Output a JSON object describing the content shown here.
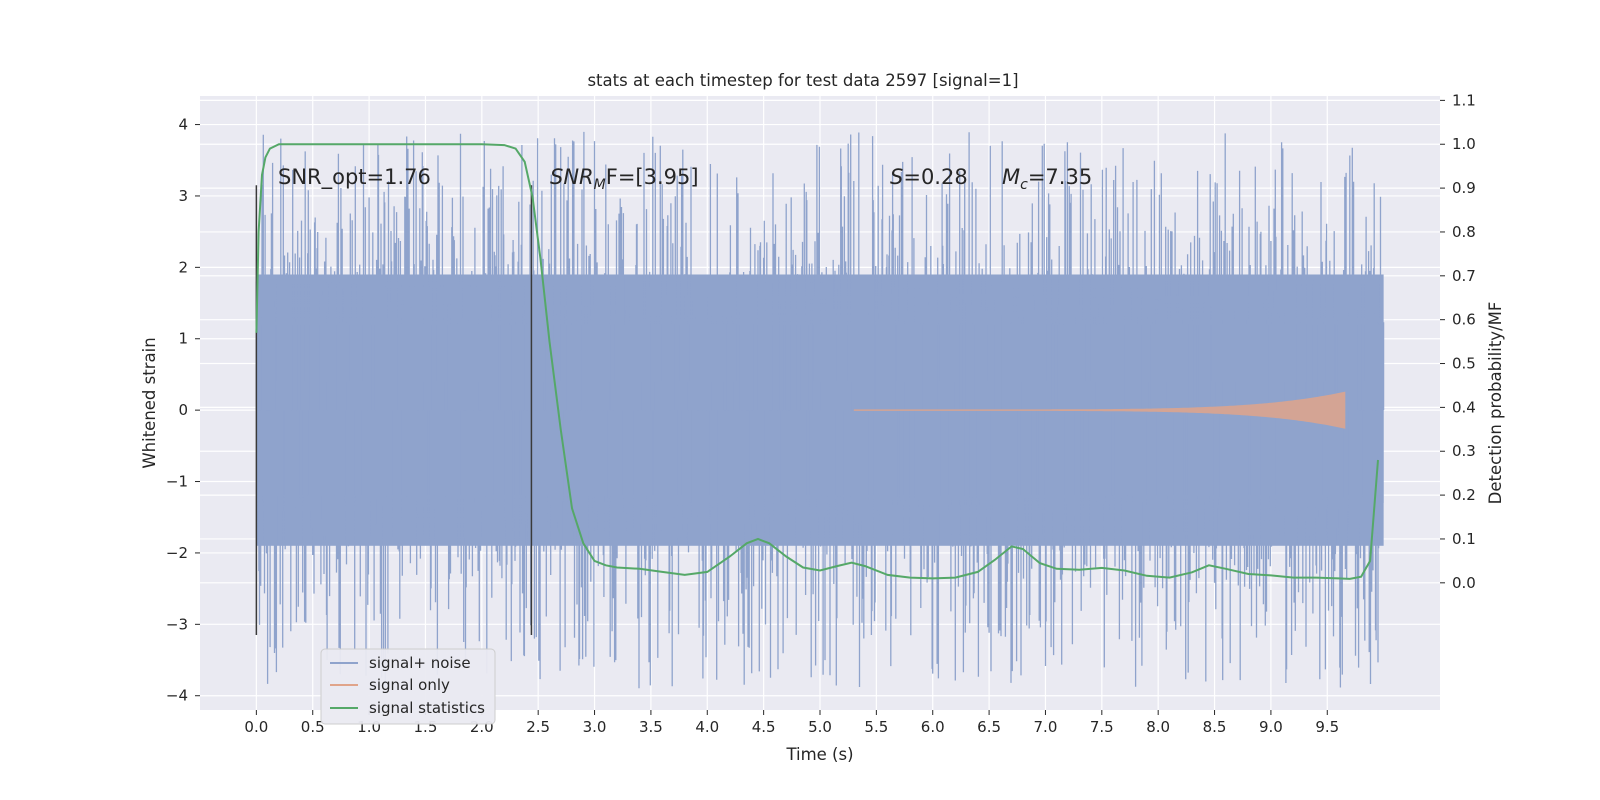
{
  "chart_data": {
    "type": "line",
    "title": "stats at each timestep for test data 2597 [signal=1]",
    "xlabel": "Time (s)",
    "ylabel": "Whitened strain",
    "y2label": "Detection probability/MF",
    "xlim": [
      -0.5,
      10.5
    ],
    "ylim": [
      -4.2,
      4.4
    ],
    "y2lim": [
      -0.29,
      1.11
    ],
    "x_ticks": [
      0.0,
      0.5,
      1.0,
      1.5,
      2.0,
      2.5,
      3.0,
      3.5,
      4.0,
      4.5,
      5.0,
      5.5,
      6.0,
      6.5,
      7.0,
      7.5,
      8.0,
      8.5,
      9.0,
      9.5
    ],
    "x_tick_labels": [
      "0.0",
      "0.5",
      "1.0",
      "1.5",
      "2.0",
      "2.5",
      "3.0",
      "3.5",
      "4.0",
      "4.5",
      "5.0",
      "5.5",
      "6.0",
      "6.5",
      "7.0",
      "7.5",
      "8.0",
      "8.5",
      "9.0",
      "9.5"
    ],
    "y_ticks": [
      4,
      3,
      2,
      1,
      0,
      -1,
      -2,
      -3,
      -4
    ],
    "y_tick_labels": [
      "4",
      "3",
      "2",
      "1",
      "0",
      "−1",
      "−2",
      "−3",
      "−4"
    ],
    "y2_ticks": [
      1.1,
      1.0,
      0.9,
      0.8,
      0.7,
      0.6,
      0.5,
      0.4,
      0.3,
      0.2,
      0.1,
      0.0
    ],
    "y2_tick_labels": [
      "1.1",
      "1.0",
      "0.9",
      "0.8",
      "0.7",
      "0.6",
      "0.5",
      "0.4",
      "0.3",
      "0.2",
      "0.1",
      "0.0"
    ],
    "grid": true,
    "legend_position": "bottom-left",
    "legend": [
      "signal+ noise",
      "signal only",
      "signal statistics"
    ],
    "colors": {
      "noise": "#8fa3cc",
      "signal": "#e0a48a",
      "stats": "#55a868",
      "vline": "#3a3a3a",
      "background": "#eaeaf2",
      "grid": "#ffffff"
    },
    "annotations": {
      "snr_opt": "SNR_opt=1.76",
      "snr_mf_main": "SNR",
      "snr_mf_sub": "M",
      "snr_mf_rest": "F=[3.95]",
      "s_label": "S",
      "s_value": "=0.28",
      "mc_main": "M",
      "mc_sub": "c",
      "mc_value": "=7.35"
    },
    "vertical_lines": [
      {
        "x": 0.0,
        "y": [
          -3.15,
          3.15
        ]
      },
      {
        "x": 2.44,
        "y": [
          -3.15,
          3.15
        ]
      }
    ],
    "signal_only": {
      "x_start": 5.3,
      "x_end": 9.66,
      "peak_amp": 0.25
    },
    "noise_band": {
      "x_start": 0.0,
      "x_end": 10.0,
      "dense_range": [
        -1.9,
        1.9
      ],
      "max": 4.05,
      "min": -4.05
    },
    "series": [
      {
        "name": "signal statistics",
        "axis": "right",
        "x": [
          0.0,
          0.02,
          0.05,
          0.08,
          0.12,
          0.2,
          0.4,
          0.8,
          1.2,
          1.6,
          2.0,
          2.2,
          2.3,
          2.38,
          2.45,
          2.52,
          2.6,
          2.7,
          2.8,
          2.9,
          3.0,
          3.1,
          3.2,
          3.4,
          3.6,
          3.8,
          4.0,
          4.2,
          4.35,
          4.45,
          4.55,
          4.7,
          4.85,
          5.0,
          5.15,
          5.28,
          5.4,
          5.6,
          5.8,
          6.0,
          6.2,
          6.4,
          6.55,
          6.7,
          6.8,
          6.95,
          7.1,
          7.3,
          7.5,
          7.7,
          7.9,
          8.1,
          8.3,
          8.45,
          8.6,
          8.8,
          9.0,
          9.2,
          9.4,
          9.6,
          9.7,
          9.8,
          9.88,
          9.95
        ],
        "y": [
          0.57,
          0.8,
          0.93,
          0.97,
          0.99,
          1.0,
          1.0,
          1.0,
          1.0,
          1.0,
          1.0,
          0.998,
          0.99,
          0.96,
          0.88,
          0.74,
          0.55,
          0.35,
          0.17,
          0.09,
          0.05,
          0.04,
          0.035,
          0.032,
          0.025,
          0.018,
          0.025,
          0.06,
          0.09,
          0.1,
          0.09,
          0.06,
          0.035,
          0.028,
          0.038,
          0.046,
          0.038,
          0.018,
          0.012,
          0.01,
          0.012,
          0.025,
          0.052,
          0.083,
          0.077,
          0.045,
          0.032,
          0.03,
          0.034,
          0.028,
          0.016,
          0.012,
          0.024,
          0.04,
          0.032,
          0.02,
          0.017,
          0.012,
          0.012,
          0.01,
          0.009,
          0.014,
          0.05,
          0.28
        ]
      }
    ]
  }
}
